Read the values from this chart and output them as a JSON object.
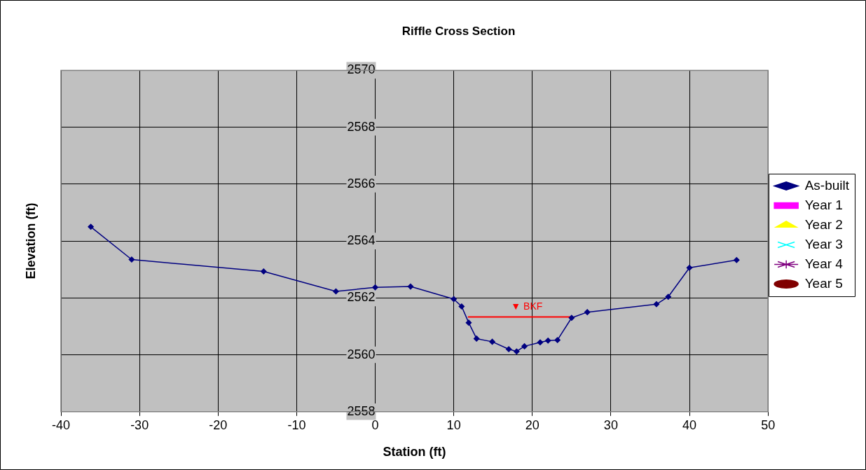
{
  "chart_data": {
    "type": "line",
    "title": "Riffle Cross Section",
    "xlabel": "Station (ft)",
    "ylabel": "Elevation (ft)",
    "xlim": [
      -40,
      50
    ],
    "xticks": [
      -40,
      -30,
      -20,
      -10,
      0,
      10,
      20,
      30,
      40,
      50
    ],
    "ylim": [
      2558,
      2570
    ],
    "yticks": [
      2558,
      2560,
      2562,
      2564,
      2566,
      2568,
      2570
    ],
    "grid": true,
    "legend": "right",
    "series": [
      {
        "name": "As-built",
        "color": "#000080",
        "marker": "diamond",
        "x": [
          -36.2,
          -31,
          -14.2,
          -5,
          0,
          4.5,
          10,
          11,
          11.9,
          12.9,
          14.9,
          17,
          18,
          19,
          21,
          22,
          23.2,
          25,
          27,
          35.8,
          37.3,
          40,
          46
        ],
        "values": [
          2564.5,
          2563.35,
          2562.93,
          2562.23,
          2562.37,
          2562.4,
          2561.96,
          2561.7,
          2561.13,
          2560.57,
          2560.46,
          2560.2,
          2560.12,
          2560.3,
          2560.44,
          2560.5,
          2560.52,
          2561.3,
          2561.5,
          2561.78,
          2562.04,
          2563.06,
          2563.33
        ]
      },
      {
        "name": "Year 1",
        "color": "#ff00ff",
        "marker": "square"
      },
      {
        "name": "Year 2",
        "color": "#ffff00",
        "marker": "triangle"
      },
      {
        "name": "Year 3",
        "color": "#00ffff",
        "marker": "cross"
      },
      {
        "name": "Year 4",
        "color": "#800080",
        "marker": "star"
      },
      {
        "name": "Year 5",
        "color": "#800000",
        "marker": "circle"
      },
      {
        "name": "▼ BKF",
        "color": "#ff0000",
        "marker": "none",
        "x": [
          11.8,
          25
        ],
        "values": [
          2561.33,
          2561.33
        ]
      }
    ]
  }
}
